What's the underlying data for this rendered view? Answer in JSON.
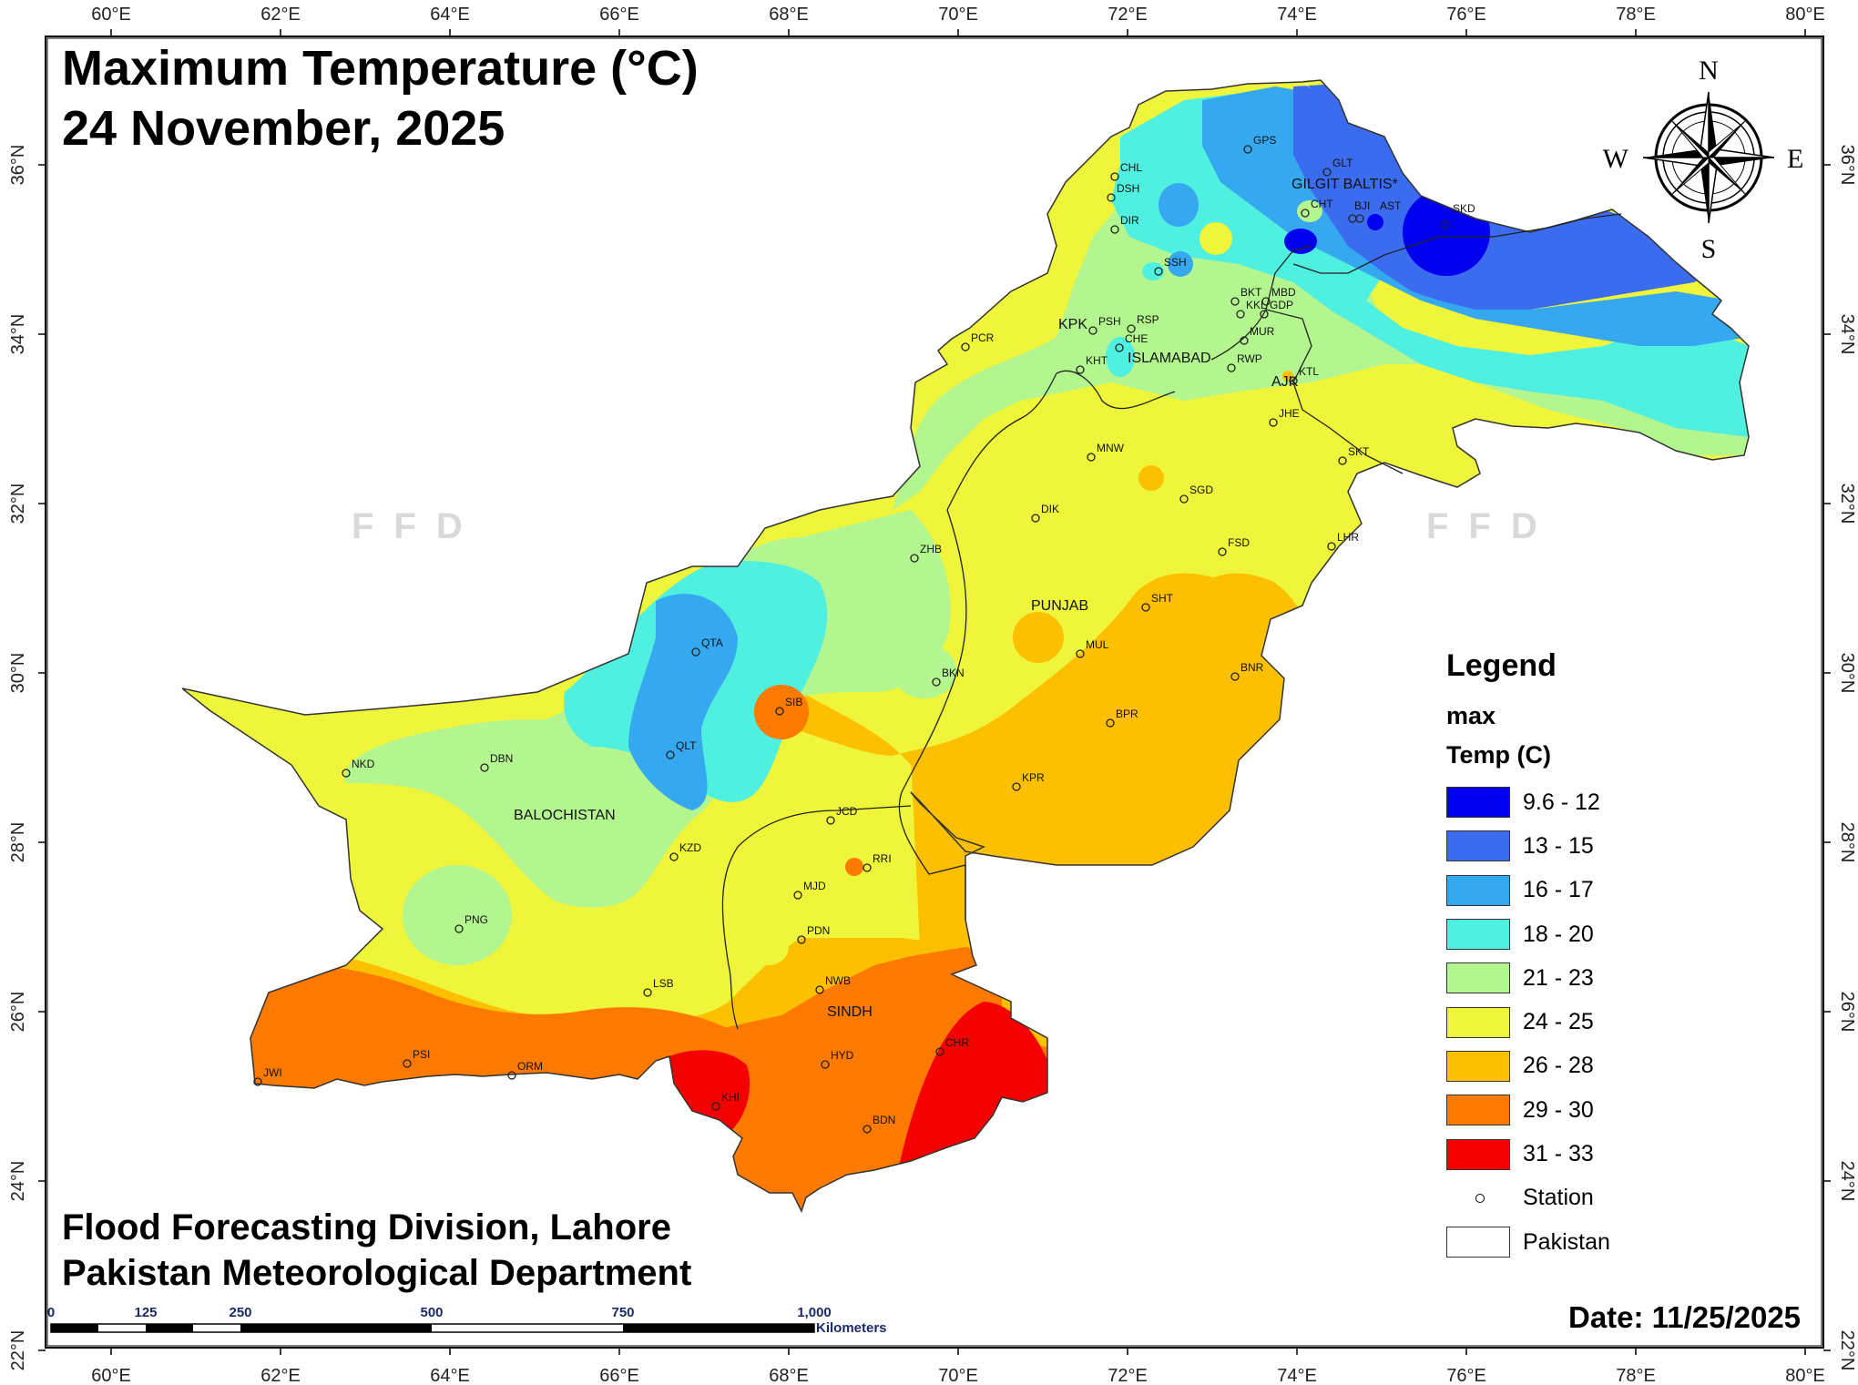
{
  "map": {
    "title_line1": "Maximum Temperature (°C)",
    "title_line2": "24 November, 2025",
    "credit_line1": "Flood Forecasting Division, Lahore",
    "credit_line2": "Pakistan Meteorological Department",
    "date_label": "Date: 11/25/2025",
    "watermark": "FFD"
  },
  "longitude_ticks": [
    "60°E",
    "62°E",
    "64°E",
    "66°E",
    "68°E",
    "70°E",
    "72°E",
    "74°E",
    "76°E",
    "78°E",
    "80°E"
  ],
  "latitude_ticks": [
    "22°N",
    "24°N",
    "26°N",
    "28°N",
    "30°N",
    "32°N",
    "34°N",
    "36°N"
  ],
  "compass": {
    "n": "N",
    "s": "S",
    "e": "E",
    "w": "W"
  },
  "scale_bar": {
    "ticks": [
      "0",
      "125",
      "250",
      "500",
      "750",
      "1,000"
    ],
    "unit": "Kilometers"
  },
  "legend": {
    "title": "Legend",
    "layer": "max",
    "field": "Temp (C)",
    "classes": [
      {
        "label": "9.6 - 12",
        "color": "#0000ee"
      },
      {
        "label": "13 - 15",
        "color": "#3b6cf0"
      },
      {
        "label": "16 - 17",
        "color": "#35a8ef"
      },
      {
        "label": "18 - 20",
        "color": "#50f0e0"
      },
      {
        "label": "21 - 23",
        "color": "#b3f58f"
      },
      {
        "label": "24 - 25",
        "color": "#eef53a"
      },
      {
        "label": "26 - 28",
        "color": "#fcc000"
      },
      {
        "label": "29 - 30",
        "color": "#fc7a00"
      },
      {
        "label": "31 - 33",
        "color": "#f50000"
      }
    ],
    "station_label": "Station",
    "boundary_label": "Pakistan"
  },
  "regions": [
    "GILGIT BALTIS*",
    "KPK",
    "ISLAMABAD",
    "AJK",
    "PUNJAB",
    "BALOCHISTAN",
    "SINDH"
  ],
  "stations": [
    "GPS",
    "GLT",
    "CHL",
    "DSH",
    "CHT",
    "BJI",
    "AST",
    "SKD",
    "DIR",
    "SSH",
    "BKT",
    "MBD",
    "KKL",
    "GDP",
    "MUR",
    "RSP",
    "PSH",
    "CHE",
    "PCR",
    "KHT",
    "RWP",
    "KTL",
    "JHE",
    "SKT",
    "MNW",
    "SGD",
    "DIK",
    "ZHB",
    "FSD",
    "LHR",
    "SHT",
    "QTA",
    "MUL",
    "BKN",
    "BNR",
    "SIB",
    "BPR",
    "QLT",
    "NKD",
    "DBN",
    "KPR",
    "JCD",
    "KZD",
    "RRI",
    "MJD",
    "PNG",
    "PDN",
    "LSB",
    "NWB",
    "CHR",
    "HYD",
    "PSI",
    "JWI",
    "ORM",
    "KHI",
    "BDN"
  ]
}
